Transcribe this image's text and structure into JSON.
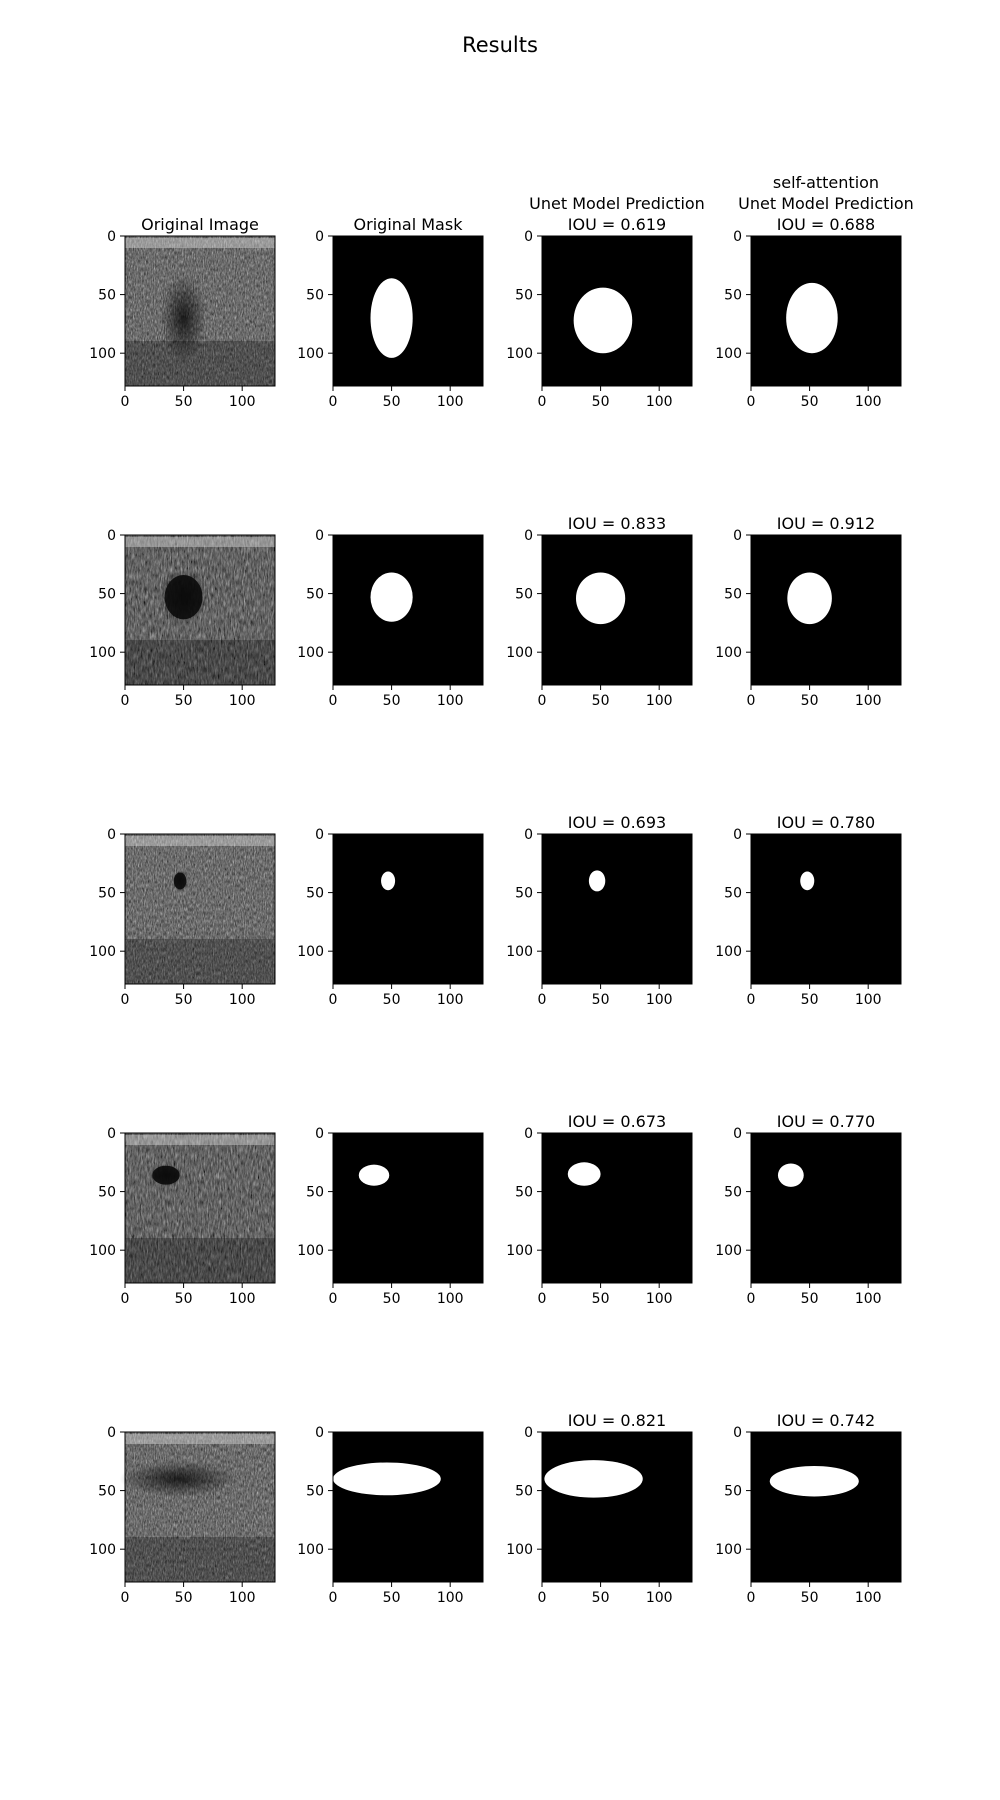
{
  "figure": {
    "title": "Results",
    "column_titles": [
      [
        "Original Image"
      ],
      [
        "Original Mask"
      ],
      [
        "Unet Model Prediction"
      ],
      [
        "self-attention",
        "Unet Model Prediction"
      ]
    ]
  },
  "chart_data": {
    "type": "heatmap",
    "image_extent": [
      0,
      128
    ],
    "x_ticks": [
      0,
      50,
      100
    ],
    "y_ticks": [
      0,
      50,
      100
    ],
    "grid": false,
    "rows": [
      {
        "unet_iou": "IOU = 0.619",
        "attention_iou": "IOU = 0.688",
        "texture": "speckle",
        "mask": {
          "cx": 50,
          "cy": 70,
          "rx": 18,
          "ry": 34
        },
        "unet": {
          "cx": 52,
          "cy": 72,
          "rx": 25,
          "ry": 28
        },
        "attention": {
          "cx": 52,
          "cy": 70,
          "rx": 22,
          "ry": 30
        }
      },
      {
        "unet_iou": "IOU = 0.833",
        "attention_iou": "IOU = 0.912",
        "texture": "cyst",
        "mask": {
          "cx": 50,
          "cy": 53,
          "rx": 18,
          "ry": 21
        },
        "unet": {
          "cx": 50,
          "cy": 54,
          "rx": 21,
          "ry": 22
        },
        "attention": {
          "cx": 50,
          "cy": 54,
          "rx": 19,
          "ry": 22
        }
      },
      {
        "unet_iou": "IOU = 0.693",
        "attention_iou": "IOU = 0.780",
        "texture": "layered",
        "mask": {
          "cx": 47,
          "cy": 40,
          "rx": 6,
          "ry": 8
        },
        "unet": {
          "cx": 47,
          "cy": 40,
          "rx": 7,
          "ry": 9
        },
        "attention": {
          "cx": 48,
          "cy": 40,
          "rx": 6,
          "ry": 8
        }
      },
      {
        "unet_iou": "IOU = 0.673",
        "attention_iou": "IOU = 0.770",
        "texture": "fibrous",
        "mask": {
          "cx": 35,
          "cy": 36,
          "rx": 13,
          "ry": 9
        },
        "unet": {
          "cx": 36,
          "cy": 35,
          "rx": 14,
          "ry": 10
        },
        "attention": {
          "cx": 34,
          "cy": 36,
          "rx": 11,
          "ry": 10
        }
      },
      {
        "unet_iou": "IOU = 0.821",
        "attention_iou": "IOU = 0.742",
        "texture": "banded",
        "mask": {
          "cx": 46,
          "cy": 40,
          "rx": 46,
          "ry": 14
        },
        "unet": {
          "cx": 44,
          "cy": 40,
          "rx": 42,
          "ry": 16
        },
        "attention": {
          "cx": 54,
          "cy": 42,
          "rx": 38,
          "ry": 13
        }
      }
    ]
  }
}
